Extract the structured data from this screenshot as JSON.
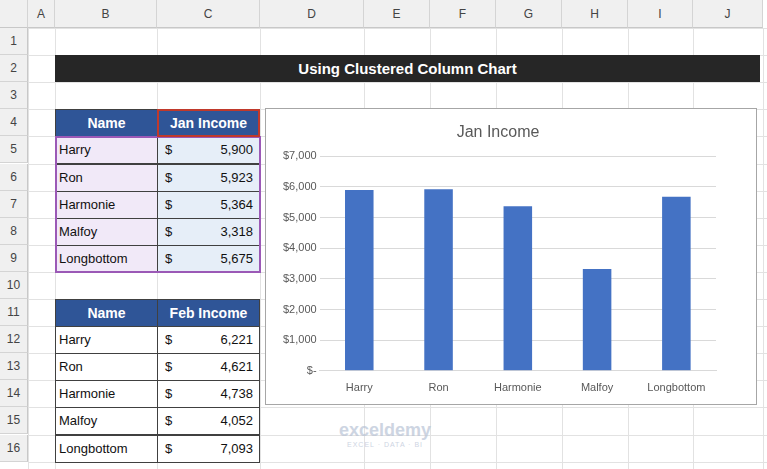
{
  "columns": [
    "A",
    "B",
    "C",
    "D",
    "E",
    "F",
    "G",
    "H",
    "I",
    "J"
  ],
  "rows": [
    1,
    2,
    3,
    4,
    5,
    6,
    7,
    8,
    9,
    10,
    11,
    12,
    13,
    14,
    15,
    16
  ],
  "title": "Using Clustered Column Chart",
  "tables": [
    {
      "header": [
        "Name",
        "Jan Income"
      ],
      "rows": [
        [
          "Harry",
          "$",
          "5,900"
        ],
        [
          "Ron",
          "$",
          "5,923"
        ],
        [
          "Harmonie",
          "$",
          "5,364"
        ],
        [
          "Malfoy",
          "$",
          "3,318"
        ],
        [
          "Longbottom",
          "$",
          "5,675"
        ]
      ]
    },
    {
      "header": [
        "Name",
        "Feb Income"
      ],
      "rows": [
        [
          "Harry",
          "$",
          "6,221"
        ],
        [
          "Ron",
          "$",
          "4,621"
        ],
        [
          "Harmonie",
          "$",
          "4,738"
        ],
        [
          "Malfoy",
          "$",
          "4,052"
        ],
        [
          "Longbottom",
          "$",
          "7,093"
        ]
      ]
    }
  ],
  "chart_data": {
    "type": "bar",
    "title": "Jan Income",
    "categories": [
      "Harry",
      "Ron",
      "Harmonie",
      "Malfoy",
      "Longbottom"
    ],
    "values": [
      5900,
      5923,
      5364,
      3318,
      5675
    ],
    "color": "#4472c4",
    "ylim": [
      0,
      7000
    ],
    "yticks": [
      {
        "value": 0,
        "label": "$-"
      },
      {
        "value": 1000,
        "label": "$1,000"
      },
      {
        "value": 2000,
        "label": "$2,000"
      },
      {
        "value": 3000,
        "label": "$3,000"
      },
      {
        "value": 4000,
        "label": "$4,000"
      },
      {
        "value": 5000,
        "label": "$5,000"
      },
      {
        "value": 6000,
        "label": "$6,000"
      },
      {
        "value": 7000,
        "label": "$7,000"
      }
    ],
    "grid": true
  },
  "watermark": {
    "name": "exceldemy",
    "tagline": "EXCEL · DATA · BI"
  }
}
